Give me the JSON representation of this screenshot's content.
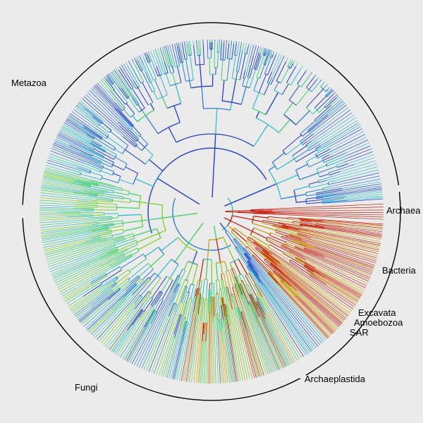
{
  "figure": {
    "clades": [
      {
        "id": "archaea",
        "label": "Archaea",
        "color": "#cc1f10"
      },
      {
        "id": "bacteria",
        "label": "Bacteria",
        "color": "#c62010"
      },
      {
        "id": "excavata",
        "label": "Excavata",
        "color": "#1a3fd6"
      },
      {
        "id": "amoebozoa",
        "label": "Amoebozoa",
        "color": "#1f7ad9"
      },
      {
        "id": "sar",
        "label": "SAR",
        "color": "#2f9fd8"
      },
      {
        "id": "archaeplastida",
        "label": "Archaeplastida",
        "color": "#3fc63a"
      },
      {
        "id": "fungi",
        "label": "Fungi",
        "color": "#1f5fd6"
      },
      {
        "id": "metazoa",
        "label": "Metazoa",
        "color": "#1f4fd6"
      }
    ],
    "palette": [
      "#1f3fd6",
      "#2a7fd8",
      "#2fbfc8",
      "#3fd06a",
      "#7fd020",
      "#c8a010",
      "#c62010"
    ]
  }
}
